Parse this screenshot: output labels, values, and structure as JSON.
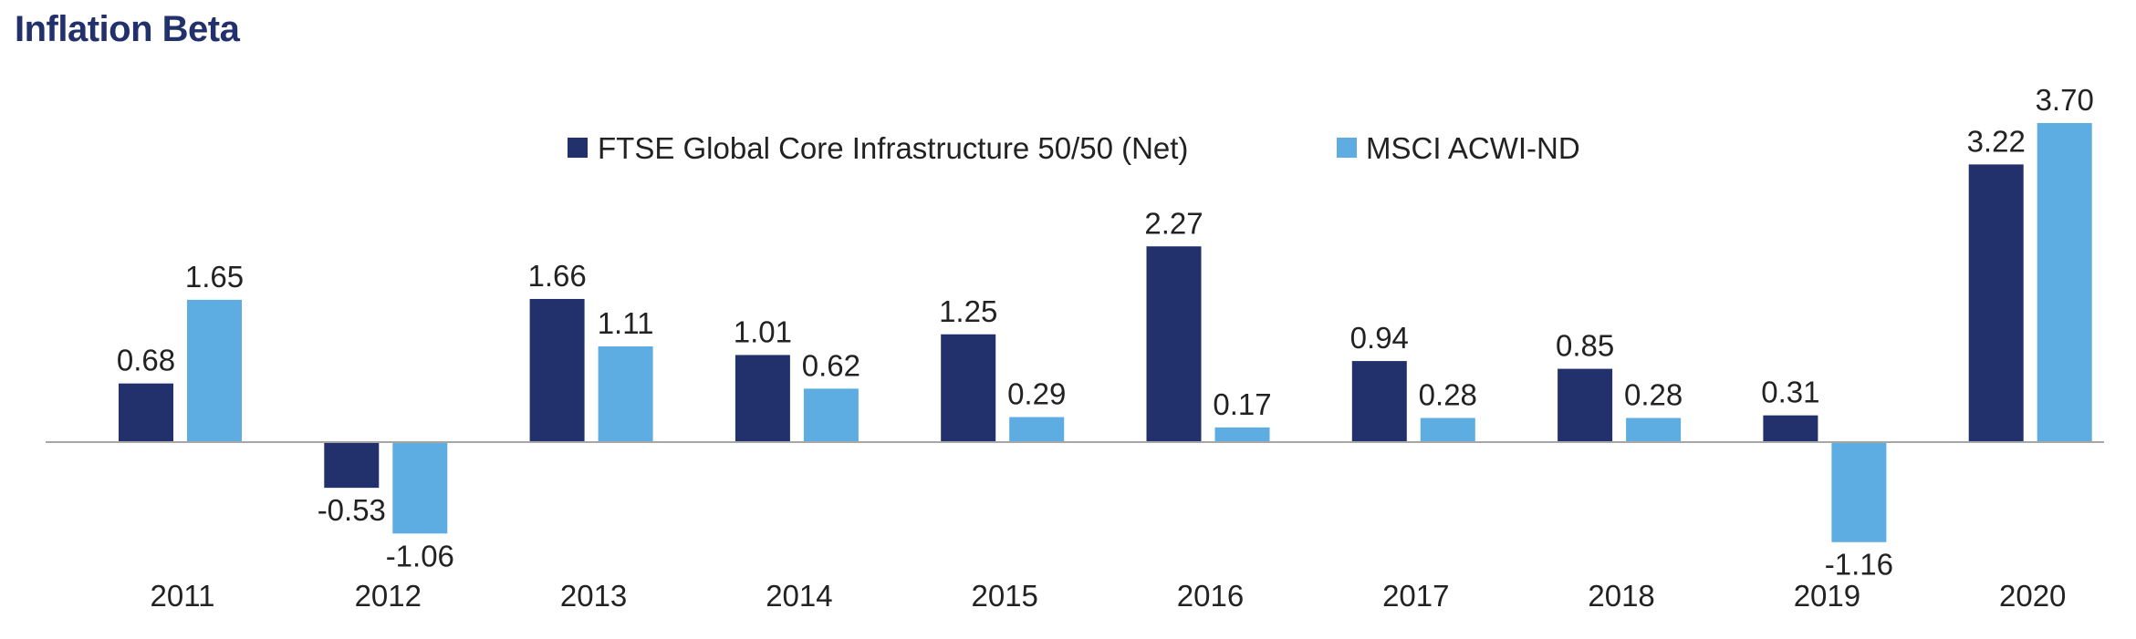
{
  "chart_data": {
    "type": "bar",
    "title": "Inflation Beta",
    "categories": [
      "2011",
      "2012",
      "2013",
      "2014",
      "2015",
      "2016",
      "2017",
      "2018",
      "2019",
      "2020"
    ],
    "series": [
      {
        "name": "FTSE Global Core Infrastructure 50/50 (Net)",
        "color": "#22306b",
        "values": [
          0.68,
          -0.53,
          1.66,
          1.01,
          1.25,
          2.27,
          0.94,
          0.85,
          0.31,
          3.22
        ],
        "labels": [
          "0.68",
          "-0.53",
          "1.66",
          "1.01",
          "1.25",
          "2.27",
          "0.94",
          "0.85",
          "0.31",
          "3.22"
        ]
      },
      {
        "name": "MSCI ACWI-ND",
        "color": "#5dade2",
        "values": [
          1.65,
          -1.06,
          1.11,
          0.62,
          0.29,
          0.17,
          0.28,
          0.28,
          -1.16,
          3.7
        ],
        "labels": [
          "1.65",
          "-1.06",
          "1.11",
          "0.62",
          "0.29",
          "0.17",
          "0.28",
          "0.28",
          "-1.16",
          "3.70"
        ]
      }
    ],
    "legend_position": "top-center",
    "grid": false,
    "baseline": 0
  }
}
